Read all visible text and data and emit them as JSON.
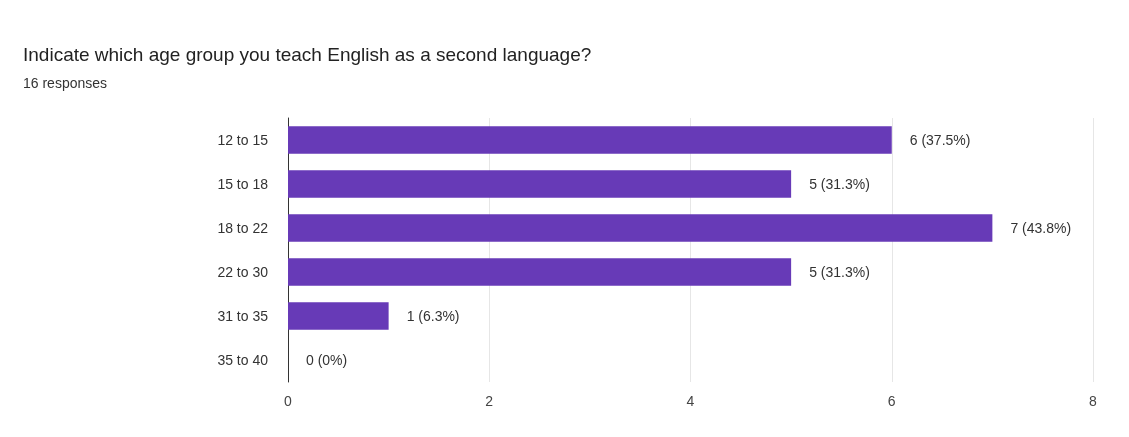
{
  "chart_data": {
    "type": "bar",
    "orientation": "horizontal",
    "title": "Indicate which age group you teach English as a second language?",
    "subtitle": "16 responses",
    "categories": [
      "12 to 15",
      "15 to 18",
      "18 to 22",
      "22 to 30",
      "31 to 35",
      "35 to 40"
    ],
    "values": [
      6,
      5,
      7,
      5,
      1,
      0
    ],
    "value_labels": [
      "6 (37.5%)",
      "5 (31.3%)",
      "7 (43.8%)",
      "5 (31.3%)",
      "1 (6.3%)",
      "0 (0%)"
    ],
    "color": "#673ab7",
    "xlim": [
      0,
      8
    ],
    "xticks": [
      0,
      2,
      4,
      6,
      8
    ],
    "grid": "x"
  }
}
